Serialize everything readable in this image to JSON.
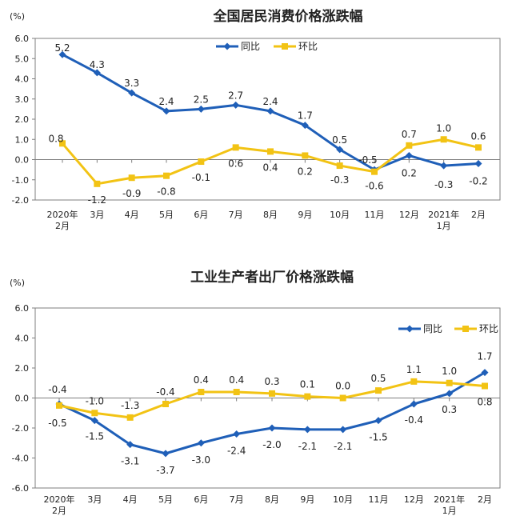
{
  "colors": {
    "yoy": "#1F5FB8",
    "mom": "#F2C314",
    "axis": "#7f7f7f",
    "text": "#222222"
  },
  "chart_data": [
    {
      "type": "line",
      "title": "全国居民消费价格涨跌幅",
      "unit": "(%)",
      "categories": [
        [
          "2020年",
          "2月"
        ],
        [
          "3月"
        ],
        [
          "4月"
        ],
        [
          "5月"
        ],
        [
          "6月"
        ],
        [
          "7月"
        ],
        [
          "8月"
        ],
        [
          "9月"
        ],
        [
          "10月"
        ],
        [
          "11月"
        ],
        [
          "12月"
        ],
        [
          "2021年",
          "1月"
        ],
        [
          "2月"
        ]
      ],
      "ylim": [
        -2.0,
        6.0
      ],
      "yticks": [
        "6.0",
        "5.0",
        "4.0",
        "3.0",
        "2.0",
        "1.0",
        "0.0",
        "-1.0",
        "-2.0"
      ],
      "grid": false,
      "legend": "top-center",
      "series": [
        {
          "name": "同比",
          "values": [
            5.2,
            4.3,
            3.3,
            2.4,
            2.5,
            2.7,
            2.4,
            1.7,
            0.5,
            -0.5,
            0.2,
            -0.3,
            -0.2
          ],
          "labels": [
            "5.2",
            "4.3",
            "3.3",
            "2.4",
            "2.5",
            "2.7",
            "2.4",
            "1.7",
            "0.5",
            "-0.5",
            "0.2",
            "-0.3",
            "-0.2"
          ]
        },
        {
          "name": "环比",
          "values": [
            0.8,
            -1.2,
            -0.9,
            -0.8,
            -0.1,
            0.6,
            0.4,
            0.2,
            -0.3,
            -0.6,
            0.7,
            1.0,
            0.6
          ],
          "labels": [
            "0.8",
            "-1.2",
            "-0.9",
            "-0.8",
            "-0.1",
            "0.6",
            "0.4",
            "0.2",
            "-0.3",
            "-0.6",
            "0.7",
            "1.0",
            "0.6"
          ]
        }
      ]
    },
    {
      "type": "line",
      "title": "工业生产者出厂价格涨跌幅",
      "unit": "(%)",
      "categories": [
        [
          "2020年",
          "2月"
        ],
        [
          "3月"
        ],
        [
          "4月"
        ],
        [
          "5月"
        ],
        [
          "6月"
        ],
        [
          "7月"
        ],
        [
          "8月"
        ],
        [
          "9月"
        ],
        [
          "10月"
        ],
        [
          "11月"
        ],
        [
          "12月"
        ],
        [
          "2021年",
          "1月"
        ],
        [
          "2月"
        ]
      ],
      "ylim": [
        -6.0,
        6.0
      ],
      "yticks": [
        "6.0",
        "4.0",
        "2.0",
        "0.0",
        "-2.0",
        "-4.0",
        "-6.0"
      ],
      "grid": false,
      "legend": "top-right",
      "series": [
        {
          "name": "同比",
          "values": [
            -0.4,
            -1.5,
            -3.1,
            -3.7,
            -3.0,
            -2.4,
            -2.0,
            -2.1,
            -2.1,
            -1.5,
            -0.4,
            0.3,
            1.7
          ],
          "labels": [
            "-0.4",
            "-1.5",
            "-3.1",
            "-3.7",
            "-3.0",
            "-2.4",
            "-2.0",
            "-2.1",
            "-2.1",
            "-1.5",
            "-0.4",
            "0.3",
            "1.7"
          ]
        },
        {
          "name": "环比",
          "values": [
            -0.5,
            -1.0,
            -1.3,
            -0.4,
            0.4,
            0.4,
            0.3,
            0.1,
            0.0,
            0.5,
            1.1,
            1.0,
            0.8
          ],
          "labels": [
            "-0.5",
            "-1.0",
            "-1.3",
            "-0.4",
            "0.4",
            "0.4",
            "0.3",
            "0.1",
            "0.0",
            "0.5",
            "1.1",
            "1.0",
            "0.8"
          ]
        }
      ]
    }
  ]
}
